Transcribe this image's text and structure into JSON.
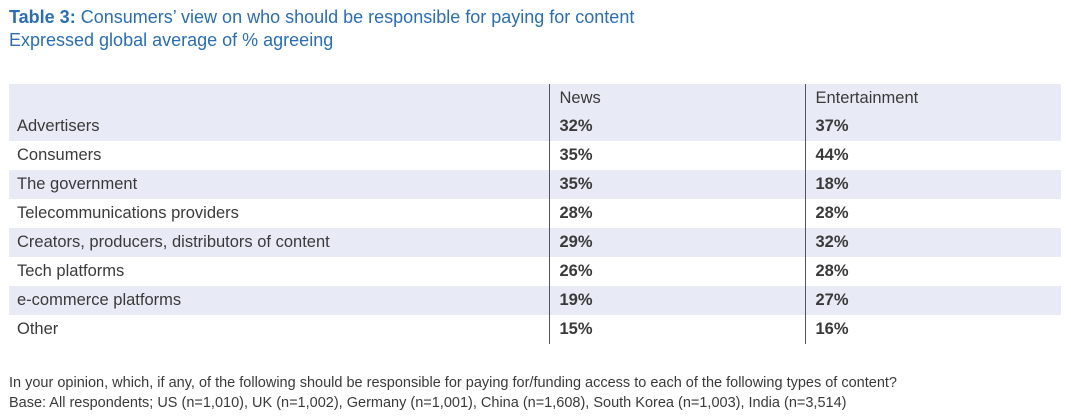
{
  "title": {
    "prefix": "Table 3:",
    "text": " Consumers’ view on who should be responsible for paying for content",
    "subtitle": "Expressed global average of % agreeing"
  },
  "table": {
    "headers": [
      "",
      "News",
      "Entertainment"
    ],
    "rows": [
      {
        "label": "Advertisers",
        "news": "32%",
        "entertainment": "37%"
      },
      {
        "label": "Consumers",
        "news": "35%",
        "entertainment": "44%"
      },
      {
        "label": "The government",
        "news": "35%",
        "entertainment": "18%"
      },
      {
        "label": "Telecommunications providers",
        "news": "28%",
        "entertainment": "28%"
      },
      {
        "label": "Creators, producers, distributors of content",
        "news": "29%",
        "entertainment": "32%"
      },
      {
        "label": "Tech platforms",
        "news": "26%",
        "entertainment": "28%"
      },
      {
        "label": "e-commerce platforms",
        "news": "19%",
        "entertainment": "27%"
      },
      {
        "label": "Other",
        "news": "15%",
        "entertainment": "16%"
      }
    ]
  },
  "footer": {
    "question": "In your opinion, which, if any, of the following should be responsible for paying for/funding access to each of the following types of content?",
    "base": "Base: All respondents; US (n=1,010), UK (n=1,002), Germany (n=1,001), China (n=1,608), South Korea (n=1,003), India (n=3,514)"
  },
  "colors": {
    "title": "#2a6eb4",
    "row_shade": "#e8ebf5",
    "text": "#3a3a3a"
  }
}
